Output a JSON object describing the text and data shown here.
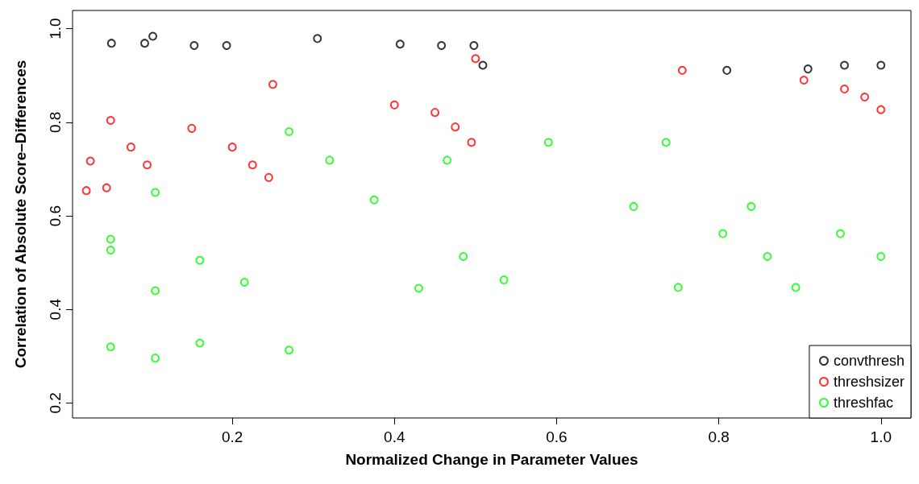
{
  "chart_data": {
    "type": "scatter",
    "xlabel": "Normalized Change in Parameter Values",
    "ylabel": "Correlation of Absolute Score–Differences",
    "xlim": [
      0.003,
      1.037
    ],
    "xticks": [
      0.2,
      0.4,
      0.6,
      0.8,
      {
        "value": 1,
        "label": "1.0"
      }
    ],
    "ylim": [
      0.168,
      1.039
    ],
    "yticks": [
      0.2,
      0.4,
      0.6,
      0.8,
      {
        "value": 1,
        "label": "1.0"
      }
    ],
    "grid": false,
    "legend": "bottom right",
    "marker": "circle",
    "series": [
      {
        "name": "convthresh",
        "color": "#000000",
        "x": [
          0.051,
          0.092,
          0.102,
          0.153,
          0.193,
          0.305,
          0.407,
          0.458,
          0.498,
          0.509,
          0.81,
          0.91,
          0.955,
          1.0
        ],
        "values": [
          0.969,
          0.969,
          0.984,
          0.964,
          0.964,
          0.979,
          0.967,
          0.964,
          0.964,
          0.922,
          0.911,
          0.914,
          0.922,
          0.922
        ]
      },
      {
        "name": "threshsizer",
        "color": "#ff0000",
        "x": [
          0.02,
          0.025,
          0.045,
          0.05,
          0.075,
          0.095,
          0.15,
          0.2,
          0.225,
          0.245,
          0.25,
          0.4,
          0.45,
          0.475,
          0.495,
          0.5,
          0.755,
          0.905,
          0.955,
          0.98,
          1.0
        ],
        "values": [
          0.654,
          0.717,
          0.66,
          0.804,
          0.747,
          0.709,
          0.787,
          0.747,
          0.709,
          0.682,
          0.881,
          0.837,
          0.821,
          0.79,
          0.757,
          0.936,
          0.911,
          0.89,
          0.871,
          0.854,
          0.827
        ]
      },
      {
        "name": "threshfac",
        "color": "#00ff00",
        "x": [
          0.05,
          0.05,
          0.05,
          0.105,
          0.105,
          0.105,
          0.16,
          0.16,
          0.215,
          0.27,
          0.27,
          0.32,
          0.375,
          0.43,
          0.465,
          0.485,
          0.535,
          0.59,
          0.695,
          0.735,
          0.75,
          0.805,
          0.84,
          0.86,
          0.895,
          0.95,
          1.0
        ],
        "values": [
          0.55,
          0.527,
          0.32,
          0.65,
          0.44,
          0.296,
          0.505,
          0.328,
          0.458,
          0.78,
          0.313,
          0.719,
          0.634,
          0.445,
          0.719,
          0.513,
          0.463,
          0.757,
          0.62,
          0.757,
          0.447,
          0.562,
          0.62,
          0.513,
          0.447,
          0.562,
          0.513
        ]
      }
    ]
  }
}
